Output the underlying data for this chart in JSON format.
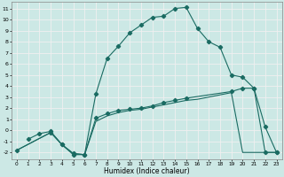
{
  "xlabel": "Humidex (Indice chaleur)",
  "background_color": "#cce8e5",
  "grid_color": "#f0f0f0",
  "line_color": "#1a6b62",
  "xlim": [
    -0.5,
    23.5
  ],
  "ylim": [
    -2.6,
    11.6
  ],
  "xticks": [
    0,
    1,
    2,
    3,
    4,
    5,
    6,
    7,
    8,
    9,
    10,
    11,
    12,
    13,
    14,
    15,
    16,
    17,
    18,
    19,
    20,
    21,
    22,
    23
  ],
  "yticks": [
    -2,
    -1,
    0,
    1,
    2,
    3,
    4,
    5,
    6,
    7,
    8,
    9,
    10,
    11
  ],
  "s1_x": [
    1,
    2,
    3,
    4,
    5,
    6,
    7,
    8,
    9,
    10,
    11,
    12,
    13,
    14,
    15,
    16,
    17,
    18,
    19,
    20,
    21,
    22,
    23
  ],
  "s1_y": [
    -0.8,
    -0.3,
    -0.1,
    -1.3,
    -2.2,
    -2.2,
    3.3,
    6.5,
    7.6,
    8.8,
    9.5,
    10.2,
    10.3,
    11.0,
    11.1,
    9.2,
    8.0,
    7.5,
    5.0,
    4.8,
    3.8,
    0.3,
    -2.0
  ],
  "s2_x": [
    0,
    3,
    4,
    5,
    6,
    7,
    8,
    9,
    10,
    11,
    12,
    13,
    14,
    15,
    19,
    20,
    21,
    22,
    23
  ],
  "s2_y": [
    -1.8,
    -0.2,
    -1.3,
    -2.1,
    -2.2,
    1.1,
    1.5,
    1.8,
    1.9,
    2.0,
    2.2,
    2.5,
    2.7,
    2.9,
    3.5,
    3.8,
    3.8,
    -2.0,
    -2.0
  ],
  "s3_x": [
    0,
    3,
    4,
    5,
    6,
    7,
    8,
    9,
    10,
    11,
    12,
    13,
    14,
    15,
    16,
    17,
    18,
    19,
    20,
    21,
    22,
    23
  ],
  "s3_y": [
    -1.8,
    -0.2,
    -1.3,
    -2.1,
    -2.2,
    0.8,
    1.3,
    1.6,
    1.8,
    1.9,
    2.1,
    2.3,
    2.5,
    2.7,
    2.8,
    3.0,
    3.2,
    3.4,
    -2.0,
    -2.0,
    -2.0,
    -2.0
  ]
}
